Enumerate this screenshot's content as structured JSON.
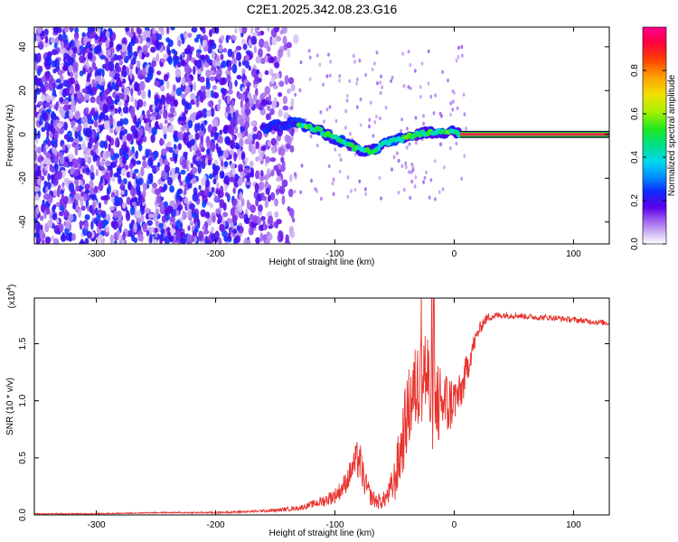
{
  "title": "C2E1.2025.342.08.23.G16",
  "colors": {
    "snr_line": "#e8332d",
    "axis": "#000000",
    "background": "#ffffff",
    "spectrogram_band": "#ff2255",
    "colormap_stops": [
      "#ffffff",
      "#c9b3f3",
      "#a56cf0",
      "#7a2ce6",
      "#3f00ee",
      "#0030ff",
      "#00a8ff",
      "#00e0e0",
      "#00e060",
      "#70f000",
      "#e0f000",
      "#ffc000",
      "#ff5a00",
      "#ff0030",
      "#ff008a"
    ]
  },
  "chart_data": [
    {
      "id": "spectrogram",
      "type": "heatmap",
      "title": "C2E1.2025.342.08.23.G16",
      "xlabel": "Height of straight line (km)",
      "ylabel": "Frequency (Hz)",
      "xlim": [
        -352,
        130
      ],
      "ylim": [
        -50,
        49
      ],
      "xticks": [
        -300,
        -200,
        -100,
        0,
        100
      ],
      "yticks": [
        -40,
        -20,
        0,
        20,
        40
      ],
      "colorbar": {
        "label": "Normalized spectral amplitude",
        "range": [
          0,
          1
        ],
        "ticks": [
          "0.0",
          "0.2",
          "0.4",
          "0.6",
          "0.8"
        ],
        "tick_values": [
          0,
          0.2,
          0.4,
          0.6,
          0.8
        ]
      },
      "ridge": {
        "description": "Dominant frequency ridge",
        "x": [
          -160,
          -150,
          -140,
          -130,
          -120,
          -110,
          -100,
          -90,
          -80,
          -70,
          -60,
          -50,
          -40,
          -30,
          -20,
          -10,
          0,
          5
        ],
        "y": [
          2,
          4,
          5,
          5,
          3,
          1,
          -2,
          -4,
          -7,
          -8,
          -5,
          -3,
          -1,
          0,
          1,
          1,
          1,
          0
        ]
      },
      "band": {
        "description": "Constant-frequency band after end of occultation",
        "x": [
          5,
          130
        ],
        "y": 0
      }
    },
    {
      "id": "snr",
      "type": "line",
      "xlabel": "Height of straight line (km)",
      "ylabel": "SNR (10 * v/v)",
      "scale_label": "(x10",
      "scale_exponent": "4",
      "xlim": [
        -352,
        130
      ],
      "ylim": [
        0,
        1.9
      ],
      "xticks": [
        -300,
        -200,
        -100,
        0,
        100
      ],
      "yticks": [
        0,
        0.5,
        1.0,
        1.5
      ],
      "ytick_labels": [
        "0.0",
        "0.5",
        "1.0",
        "1.5"
      ],
      "series": [
        {
          "name": "SNR",
          "x": [
            -352,
            -300,
            -250,
            -200,
            -170,
            -150,
            -130,
            -120,
            -110,
            -100,
            -95,
            -90,
            -85,
            -80,
            -75,
            -70,
            -65,
            -60,
            -55,
            -50,
            -45,
            -40,
            -35,
            -30,
            -25,
            -20,
            -15,
            -10,
            -5,
            0,
            5,
            10,
            15,
            20,
            25,
            30,
            40,
            50,
            60,
            70,
            80,
            90,
            100,
            110,
            120,
            130
          ],
          "y": [
            0.01,
            0.01,
            0.02,
            0.02,
            0.03,
            0.04,
            0.06,
            0.09,
            0.12,
            0.17,
            0.22,
            0.3,
            0.42,
            0.5,
            0.28,
            0.16,
            0.12,
            0.12,
            0.18,
            0.3,
            0.55,
            0.85,
            1.05,
            1.15,
            1.3,
            1.05,
            0.95,
            1.0,
            0.95,
            1.02,
            1.05,
            1.25,
            1.45,
            1.6,
            1.7,
            1.74,
            1.75,
            1.75,
            1.74,
            1.73,
            1.73,
            1.72,
            1.71,
            1.7,
            1.69,
            1.68
          ],
          "noise_amplitude": [
            0.005,
            0.005,
            0.005,
            0.008,
            0.01,
            0.015,
            0.02,
            0.03,
            0.05,
            0.07,
            0.08,
            0.1,
            0.12,
            0.2,
            0.12,
            0.08,
            0.07,
            0.07,
            0.1,
            0.2,
            0.3,
            0.35,
            0.38,
            0.4,
            0.45,
            0.5,
            0.4,
            0.35,
            0.3,
            0.2,
            0.18,
            0.15,
            0.1,
            0.06,
            0.05,
            0.04,
            0.03,
            0.03,
            0.025,
            0.025,
            0.025,
            0.025,
            0.025,
            0.025,
            0.025,
            0.025
          ]
        }
      ]
    }
  ]
}
